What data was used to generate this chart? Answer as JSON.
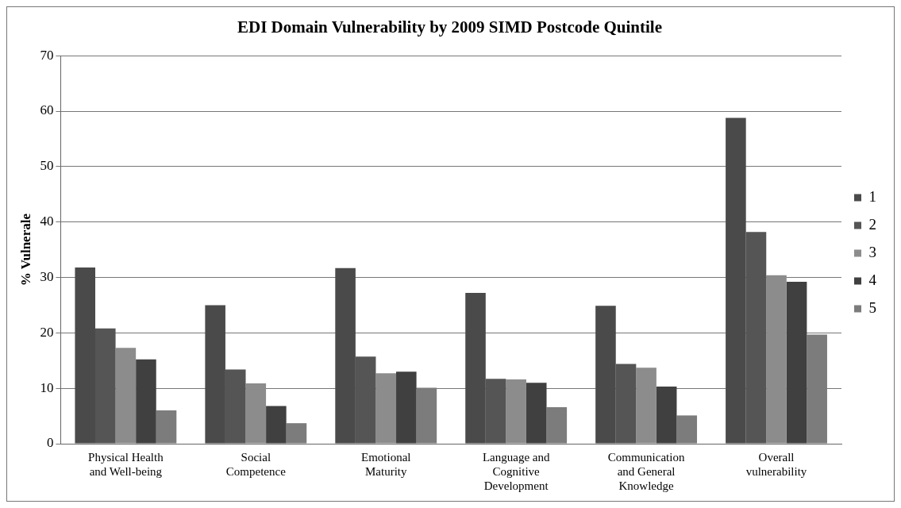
{
  "chart_data": {
    "type": "bar",
    "title": "EDI Domain Vulnerability by 2009 SIMD Postcode Quintile",
    "ylabel": "% Vulnerale",
    "categories": [
      "Physical Health\nand Well-being",
      "Social\nCompetence",
      "Emotional\nMaturity",
      "Language and\nCognitive\nDevelopment",
      "Communication\nand General\nKnowledge",
      "Overall\nvulnerability"
    ],
    "series": [
      {
        "name": "1",
        "color": "#4a4a4a",
        "values": [
          31.8,
          25.0,
          31.7,
          27.2,
          24.9,
          58.8
        ]
      },
      {
        "name": "2",
        "color": "#555555",
        "values": [
          20.8,
          13.4,
          15.7,
          11.7,
          14.4,
          38.2
        ]
      },
      {
        "name": "3",
        "color": "#8c8c8c",
        "values": [
          17.3,
          10.9,
          12.7,
          11.6,
          13.7,
          30.4
        ]
      },
      {
        "name": "4",
        "color": "#404040",
        "values": [
          15.2,
          6.8,
          13.0,
          11.0,
          10.3,
          29.2
        ]
      },
      {
        "name": "5",
        "color": "#7c7c7c",
        "values": [
          6.0,
          3.7,
          10.1,
          6.6,
          5.1,
          19.7
        ]
      }
    ],
    "ylim": [
      0,
      70
    ],
    "yticks": [
      0,
      10,
      20,
      30,
      40,
      50,
      60,
      70
    ],
    "grid": "y",
    "legend": "right"
  }
}
